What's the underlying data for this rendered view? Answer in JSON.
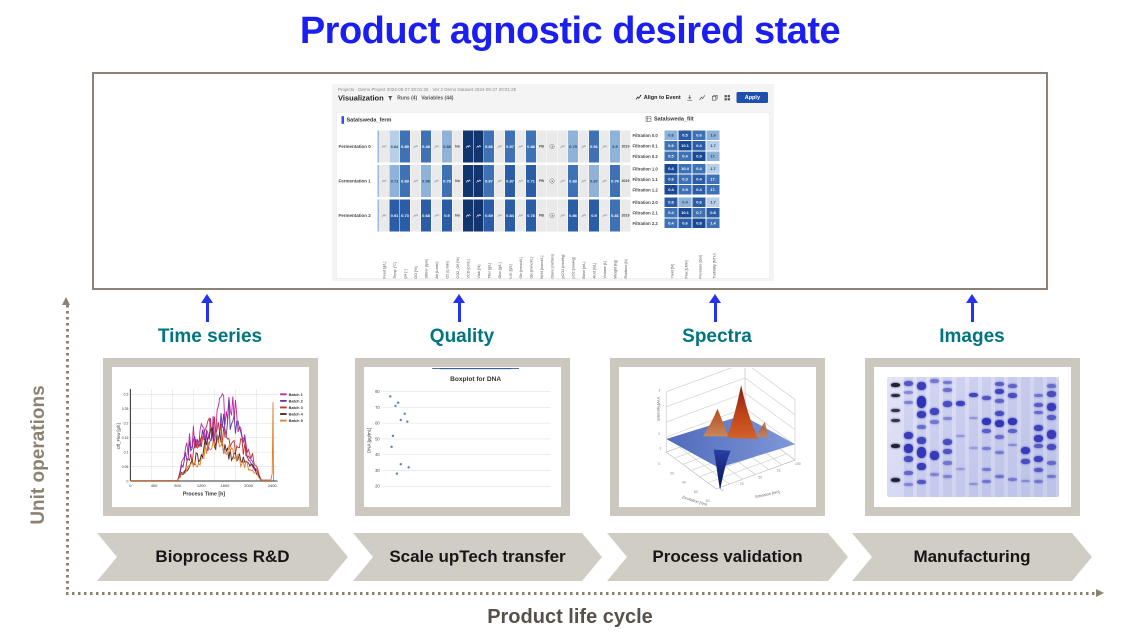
{
  "title": "Product agnostic desired state",
  "colors": {
    "title_blue": "#1a1ef0",
    "arrow_blue": "#2633ee",
    "teal": "#007580",
    "box_border": "#8c8376",
    "thumb_frame": "#ccc8bf",
    "chevron_bg": "#d0cdc4",
    "axis_taupe": "#8d8271",
    "app_accent": "#1e4fae"
  },
  "app": {
    "breadcrumb": "Projects · Demo Project 2024-05-27 20:01:25 · Ver 2 Demo Dataset 2024-05-27 20:01:25",
    "view_title": "Visualization",
    "runs_label": "Runs (4)",
    "variables_label": "Variables (44)",
    "align_label": "Align to Event",
    "apply_label": "Apply",
    "left_dataset": "Satalsweda_ferm",
    "right_dataset": "Satalsweda_filt",
    "palette": [
      "#eaeaea",
      "#b9cfe8",
      "#8fb2d9",
      "#3f72b4",
      "#2b5da6",
      "#1b4a94",
      "#12356f"
    ],
    "left_rows": [
      "Fermentation 0",
      "Fermentation 1",
      "Fermentation 2"
    ],
    "left_cells": [
      [
        "s",
        "v1:0.64",
        "v3:0.85",
        "s",
        "v3:0.48",
        "s",
        "v2:0.88",
        "x:No",
        "d6",
        "d6",
        "v3:0.66",
        "s",
        "v3:0.57",
        "s",
        "v3:0.88",
        "x:PB",
        "g",
        "s",
        "v2:0.75",
        "s",
        "v3:0.91",
        "s",
        "v2:0.5",
        "x:2019"
      ],
      [
        "s",
        "v2:0.71",
        "v3:0.89",
        "s",
        "v2:0.58",
        "s",
        "v3:0.78",
        "x:No",
        "d6",
        "d6",
        "v3:0.67",
        "s",
        "v4:0.87",
        "s",
        "v4:0.71",
        "x:PB",
        "g",
        "s",
        "v3:0.88",
        "s",
        "v2:0.67",
        "s",
        "v3:0.76",
        "x:2019"
      ],
      [
        "s",
        "v4:0.91",
        "v4:0.73",
        "s",
        "v4:0.68",
        "s",
        "v4:0.9",
        "x:No",
        "d6",
        "d6",
        "v4:0.69",
        "s",
        "v4:0.84",
        "s",
        "v4:0.78",
        "x:PB",
        "g",
        "s",
        "v4:0.86",
        "s",
        "v4:0.9",
        "s",
        "v3:0.81",
        "x:2019"
      ]
    ],
    "filtration_rows": [
      "Filtration 0.0",
      "Filtration 0.1",
      "Filtration 0.2",
      "Filtration 1.0",
      "Filtration 1.1",
      "Filtration 1.2",
      "Filtration 2.0",
      "Filtration 2.1",
      "Filtration 2.2"
    ],
    "right_cells": [
      [
        "v2:0.8",
        "v4:0.5",
        "v3:0.6",
        "v2:1.6"
      ],
      [
        "v3:0.9",
        "v5:10.1",
        "v4:0.4",
        "v1:1.7"
      ],
      [
        "v3:0.5",
        "v3:0.4",
        "v5:0.9",
        "v2:17."
      ],
      [
        "v5:0.4",
        "v3:10.4",
        "v3:0.4",
        "v1:1.7"
      ],
      [
        "v4:0.8",
        "v3:0.3",
        "v4:0.4",
        "v3:17."
      ],
      [
        "v5:0.4",
        "v3:0.5",
        "v4:0.4",
        "v3:17."
      ],
      [
        "v4:0.8",
        "v2:0.4",
        "v4:0.6",
        "v1:1.7"
      ],
      [
        "v3:0.4",
        "v5:10.1",
        "v3:0.7",
        "v4:0.8"
      ],
      [
        "v3:0.4",
        "v4:0.6",
        "v5:0.8",
        "v3:1.4"
      ]
    ],
    "column_labels": [
      "Feed [g/L]",
      "Temp [°C]",
      "pH [-]",
      "DO [%]",
      "Stirrer [rpm]",
      "Air [L/min]",
      "O2 [L/min]",
      "CO2_Off [%]",
      "VCD [c/mL]",
      "Viab [%]",
      "Titer [g/L]",
      "Gluc [g/L]",
      "Lac [g/L]",
      "Gln [mmol/L]",
      "Glu [mmol/L]",
      "NH4 [mmol/L]",
      "Osmo [mOsm]",
      "pCO2 [mmHg]",
      "pO2 [mmHg]",
      "Base [mL]",
      "Acid [mL]",
      "Volume [L]",
      "Weight [kg]",
      "Runtime [h]"
    ],
    "right_column_labels": [
      "Yield [%]",
      "Flux [LMH]",
      "Pressure [bar]",
      "Turbidity [NTU]"
    ]
  },
  "categories": [
    {
      "label": "Time series"
    },
    {
      "label": "Quality"
    },
    {
      "label": "Spectra"
    },
    {
      "label": "Images"
    }
  ],
  "stages": [
    {
      "lines": [
        "Bioprocess R&D"
      ]
    },
    {
      "lines": [
        "Scale up",
        "Tech transfer"
      ]
    },
    {
      "lines": [
        "Process validation"
      ]
    },
    {
      "lines": [
        "Manufacturing"
      ]
    }
  ],
  "axis_labels": {
    "y": "Unit operations",
    "x": "Product life cycle"
  },
  "thumbs": {
    "timeseries": {
      "xlabel": "Process Time [h]",
      "ylabel": "Off_Flow [g/h]",
      "x_ticks": [
        "0",
        "400",
        "800",
        "1200",
        "1600",
        "2000",
        "2400"
      ],
      "y_ticks": [
        "0",
        "0.05",
        "0.1",
        "0.15",
        "0.2",
        "0.25",
        "0.3"
      ],
      "legend": [
        "Batch 1",
        "Batch 2",
        "Batch 3",
        "Batch 4",
        "Batch 5"
      ],
      "series": [
        {
          "color": "#c22ba0",
          "amp": 62,
          "seed": 7
        },
        {
          "color": "#6a35a8",
          "amp": 52,
          "seed": 13
        },
        {
          "color": "#c23232",
          "amp": 46,
          "seed": 29
        },
        {
          "color": "#5a241c",
          "amp": 33,
          "seed": 41
        },
        {
          "color": "#e08030",
          "amp": 30,
          "seed": 59
        }
      ]
    },
    "boxplot": {
      "title": "Boxplot for DNA",
      "ylabel": "DNA [µg/mL]",
      "ticks": [
        20,
        30,
        40,
        50,
        60,
        70,
        80
      ],
      "stats": {
        "low": 24,
        "q1": 37,
        "median": 52,
        "mean": 56,
        "q3": 66,
        "high": 74
      },
      "box_fill": "#4f81bd",
      "box_stroke": "#2d5f8e",
      "points": [
        [
          20,
          77
        ],
        [
          26,
          73
        ],
        [
          24,
          71
        ],
        [
          31,
          66
        ],
        [
          28,
          62
        ],
        [
          33,
          61
        ],
        [
          22,
          52
        ],
        [
          21,
          45
        ],
        [
          28,
          34
        ],
        [
          34,
          32
        ],
        [
          25,
          28
        ]
      ]
    },
    "surface": {
      "xlabel": "Emission [nm]",
      "ylabel": "Excitation [nm]",
      "zlabel": "Intensity [AU]",
      "plane_color_left": "#4a66b8",
      "plane_color_right": "#7b94d8",
      "peak_top": "#8a1f10",
      "peak_mid": "#d2622a",
      "dip_top": "#2a3fa8",
      "dip_bottom": "#05124a"
    },
    "gel": {
      "band_color": "#2a2eb5",
      "marker_color": "#20203a",
      "lanes": [
        {
          "marker": true,
          "bands": [
            [
              5,
              4,
              1
            ],
            [
              14,
              3,
              0.95
            ],
            [
              27,
              3,
              0.9
            ],
            [
              35,
              3,
              0.9
            ],
            [
              56,
              4,
              1
            ],
            [
              84,
              4,
              1
            ]
          ]
        },
        {
          "marker": false,
          "bands": [
            [
              3,
              5,
              0.75
            ],
            [
              12,
              3,
              0.45
            ],
            [
              20,
              3,
              0.5
            ],
            [
              46,
              7,
              0.9
            ],
            [
              56,
              9,
              0.95
            ],
            [
              66,
              6,
              0.8
            ],
            [
              78,
              4,
              0.65
            ],
            [
              88,
              3,
              0.45
            ]
          ]
        },
        {
          "marker": false,
          "bands": [
            [
              4,
              8,
              0.9
            ],
            [
              16,
              12,
              0.98
            ],
            [
              28,
              7,
              0.9
            ],
            [
              40,
              4,
              0.6
            ],
            [
              50,
              7,
              0.85
            ],
            [
              58,
              11,
              0.95
            ],
            [
              72,
              7,
              0.9
            ],
            [
              86,
              4,
              0.75
            ]
          ]
        },
        {
          "marker": false,
          "bands": [
            [
              2,
              4,
              0.55
            ],
            [
              26,
              7,
              0.85
            ],
            [
              36,
              4,
              0.55
            ],
            [
              62,
              9,
              0.92
            ],
            [
              80,
              3,
              0.45
            ]
          ]
        },
        {
          "marker": false,
          "bands": [
            [
              3,
              3,
              0.55
            ],
            [
              9,
              4,
              0.6
            ],
            [
              20,
              6,
              0.8
            ],
            [
              33,
              3,
              0.45
            ],
            [
              52,
              6,
              0.8
            ],
            [
              60,
              5,
              0.75
            ],
            [
              70,
              4,
              0.55
            ],
            [
              82,
              3,
              0.45
            ]
          ]
        },
        {
          "marker": false,
          "bands": [
            [
              20,
              5,
              0.88
            ],
            [
              48,
              2,
              0.35
            ],
            [
              76,
              2,
              0.3
            ]
          ]
        },
        {
          "marker": false,
          "bands": [
            [
              13,
              4,
              0.85
            ],
            [
              33,
              2,
              0.35
            ],
            [
              58,
              2,
              0.3
            ],
            [
              88,
              2,
              0.35
            ]
          ]
        },
        {
          "marker": false,
          "bands": [
            [
              16,
              4,
              0.75
            ],
            [
              34,
              7,
              0.95
            ],
            [
              43,
              4,
              0.7
            ],
            [
              58,
              3,
              0.5
            ],
            [
              76,
              3,
              0.5
            ],
            [
              86,
              3,
              0.55
            ]
          ]
        },
        {
          "marker": false,
          "bands": [
            [
              4,
              4,
              0.7
            ],
            [
              10,
              5,
              0.85
            ],
            [
              18,
              4,
              0.65
            ],
            [
              28,
              5,
              0.8
            ],
            [
              36,
              7,
              0.95
            ],
            [
              48,
              4,
              0.6
            ],
            [
              62,
              3,
              0.5
            ],
            [
              82,
              3,
              0.55
            ]
          ]
        },
        {
          "marker": false,
          "bands": [
            [
              6,
              4,
              0.65
            ],
            [
              13,
              5,
              0.8
            ],
            [
              34,
              7,
              0.95
            ],
            [
              43,
              4,
              0.65
            ],
            [
              56,
              2,
              0.4
            ],
            [
              84,
              3,
              0.5
            ]
          ]
        },
        {
          "marker": false,
          "bands": [
            [
              58,
              7,
              0.9
            ],
            [
              68,
              5,
              0.8
            ],
            [
              86,
              2,
              0.4
            ]
          ]
        },
        {
          "marker": false,
          "bands": [
            [
              14,
              3,
              0.55
            ],
            [
              22,
              4,
              0.7
            ],
            [
              28,
              3,
              0.6
            ],
            [
              40,
              6,
              0.85
            ],
            [
              48,
              7,
              0.9
            ],
            [
              56,
              4,
              0.7
            ],
            [
              66,
              6,
              0.85
            ],
            [
              76,
              4,
              0.7
            ],
            [
              86,
              3,
              0.5
            ]
          ]
        },
        {
          "marker": false,
          "bands": [
            [
              6,
              4,
              0.6
            ],
            [
              12,
              6,
              0.8
            ],
            [
              22,
              8,
              0.9
            ],
            [
              32,
              5,
              0.7
            ],
            [
              44,
              9,
              0.9
            ],
            [
              56,
              6,
              0.8
            ],
            [
              70,
              4,
              0.6
            ],
            [
              82,
              3,
              0.5
            ]
          ]
        }
      ]
    }
  }
}
